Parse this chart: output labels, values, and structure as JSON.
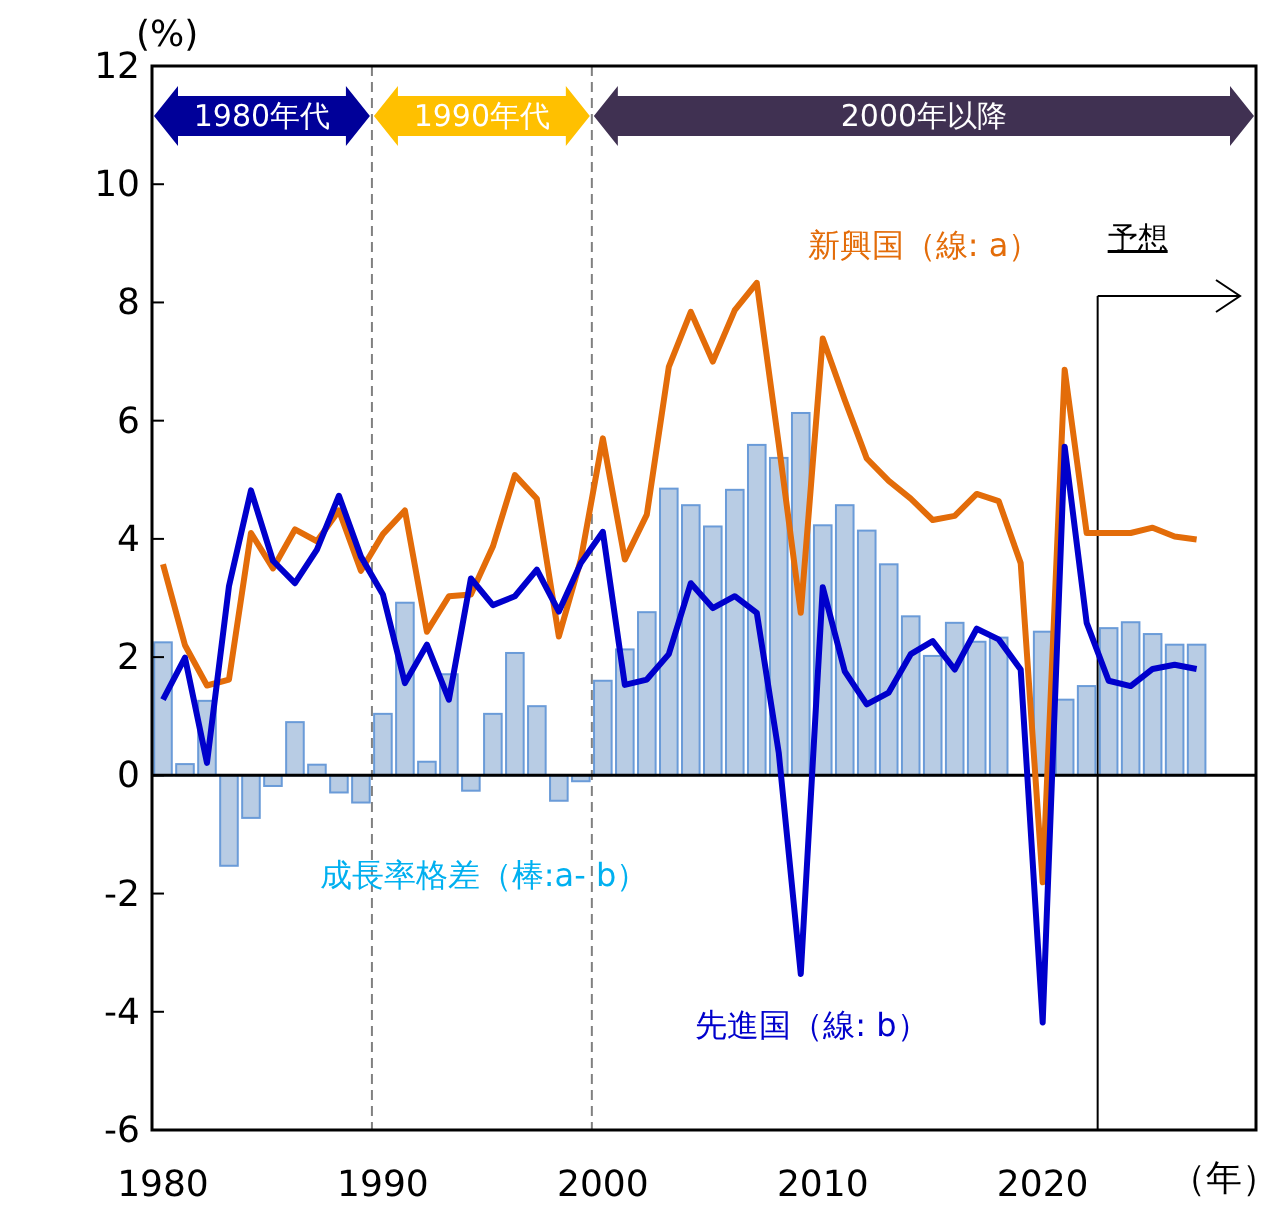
{
  "chart_data": {
    "type": "bar",
    "xlabel": "（年）",
    "ylabel": "(%)",
    "x": [
      1980,
      1981,
      1982,
      1983,
      1984,
      1985,
      1986,
      1987,
      1988,
      1989,
      1990,
      1991,
      1992,
      1993,
      1994,
      1995,
      1996,
      1997,
      1998,
      1999,
      2000,
      2001,
      2002,
      2003,
      2004,
      2005,
      2006,
      2007,
      2008,
      2009,
      2010,
      2011,
      2012,
      2013,
      2014,
      2015,
      2016,
      2017,
      2018,
      2019,
      2020,
      2021,
      2022,
      2023,
      2024,
      2025,
      2026,
      2027
    ],
    "xlim": [
      1979.5,
      2029.7
    ],
    "xticks": [
      1980,
      1990,
      2000,
      2010,
      2020
    ],
    "ylim": [
      -6,
      12
    ],
    "yticks": [
      -6,
      -4,
      -2,
      0,
      2,
      4,
      6,
      8,
      10,
      12
    ],
    "series": [
      {
        "name": "成長率格差（棒:a- b）",
        "color": "#b8cce4",
        "values": [
          2.25,
          0.19,
          1.26,
          -1.53,
          -0.72,
          -0.18,
          0.9,
          0.18,
          -0.29,
          -0.46,
          1.04,
          2.92,
          0.23,
          1.71,
          -0.26,
          1.04,
          2.07,
          1.17,
          -0.43,
          -0.1,
          1.6,
          2.13,
          2.76,
          4.85,
          4.57,
          4.21,
          4.83,
          5.59,
          5.37,
          6.13,
          4.23,
          4.57,
          4.14,
          3.57,
          2.69,
          2.02,
          2.58,
          2.26,
          2.33,
          null,
          2.43,
          1.28,
          1.51,
          2.49,
          2.59,
          2.39,
          2.21,
          2.21
        ]
      },
      {
        "type": "line",
        "name": "新興国（線: a）",
        "color": "#e36c09",
        "values": [
          3.57,
          2.2,
          1.52,
          1.62,
          4.1,
          3.5,
          4.16,
          3.96,
          4.48,
          3.46,
          4.08,
          4.48,
          2.43,
          3.03,
          3.06,
          3.87,
          5.08,
          4.68,
          2.35,
          3.65,
          5.7,
          3.65,
          4.41,
          6.91,
          7.84,
          7.0,
          7.87,
          8.33,
          5.6,
          2.75,
          7.39,
          6.35,
          5.36,
          4.98,
          4.68,
          4.32,
          4.39,
          4.76,
          4.64,
          3.59,
          -1.81,
          6.86,
          4.1,
          4.1,
          4.1,
          4.19,
          4.04,
          3.99
        ]
      },
      {
        "type": "line",
        "name": "先進国（線: b）",
        "color": "#0000cc",
        "values": [
          1.28,
          1.99,
          0.21,
          3.2,
          4.82,
          3.63,
          3.25,
          3.82,
          4.73,
          3.7,
          3.06,
          1.56,
          2.21,
          1.28,
          3.33,
          2.88,
          3.03,
          3.48,
          2.77,
          3.59,
          4.12,
          1.53,
          1.62,
          2.05,
          3.25,
          2.83,
          3.03,
          2.75,
          0.38,
          -3.36,
          3.18,
          1.76,
          1.2,
          1.4,
          2.05,
          2.27,
          1.79,
          2.48,
          2.3,
          1.79,
          -4.18,
          5.56,
          2.58,
          1.6,
          1.51,
          1.8,
          1.87,
          1.8
        ]
      }
    ],
    "ref_lines": [
      {
        "axis": "x",
        "value": 1989.5,
        "color": "#808080",
        "line_style": "dashed"
      },
      {
        "axis": "x",
        "value": 1999.5,
        "color": "#808080",
        "line_style": "dashed"
      },
      {
        "axis": "x",
        "value": 2022.5,
        "color": "#000000",
        "line_style": "solid",
        "label": "予想"
      }
    ],
    "annotations": [
      "1980年代",
      "1990年代",
      "2000年以降"
    ]
  }
}
